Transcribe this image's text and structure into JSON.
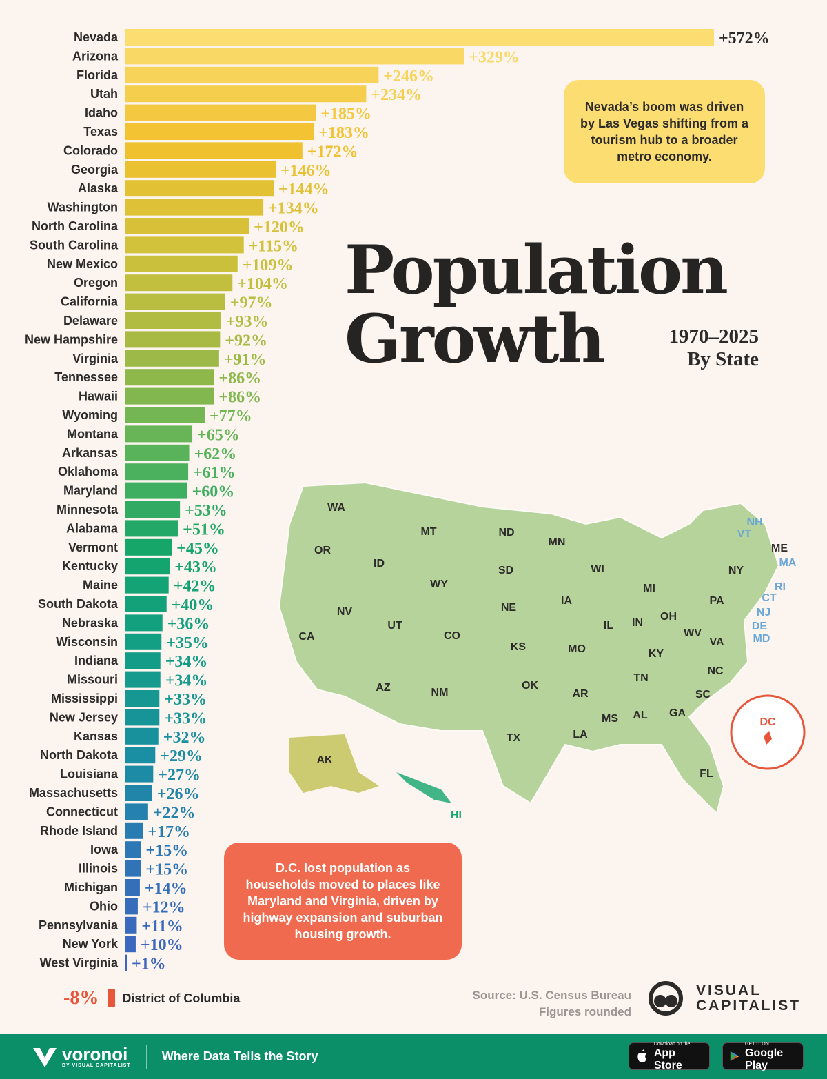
{
  "chart_data": {
    "type": "bar",
    "orientation": "horizontal",
    "title": "Population Growth",
    "subtitle": [
      "1970–2025",
      "By State"
    ],
    "categories": [
      "Nevada",
      "Arizona",
      "Florida",
      "Utah",
      "Idaho",
      "Texas",
      "Colorado",
      "Georgia",
      "Alaska",
      "Washington",
      "North Carolina",
      "South Carolina",
      "New Mexico",
      "Oregon",
      "California",
      "Delaware",
      "New Hampshire",
      "Virginia",
      "Tennessee",
      "Hawaii",
      "Wyoming",
      "Montana",
      "Arkansas",
      "Oklahoma",
      "Maryland",
      "Minnesota",
      "Alabama",
      "Vermont",
      "Kentucky",
      "Maine",
      "South Dakota",
      "Nebraska",
      "Wisconsin",
      "Indiana",
      "Missouri",
      "Mississippi",
      "New Jersey",
      "Kansas",
      "North Dakota",
      "Louisiana",
      "Massachusetts",
      "Connecticut",
      "Rhode Island",
      "Iowa",
      "Illinois",
      "Michigan",
      "Ohio",
      "Pennsylvania",
      "New York",
      "West Virginia"
    ],
    "values": [
      572,
      329,
      246,
      234,
      185,
      183,
      172,
      146,
      144,
      134,
      120,
      115,
      109,
      104,
      97,
      93,
      92,
      91,
      86,
      86,
      77,
      65,
      62,
      61,
      60,
      53,
      51,
      45,
      43,
      42,
      40,
      36,
      35,
      34,
      34,
      33,
      33,
      32,
      29,
      27,
      26,
      22,
      17,
      15,
      15,
      14,
      12,
      11,
      10,
      1
    ],
    "labels": [
      "+572%",
      "+329%",
      "+246%",
      "+234%",
      "+185%",
      "+183%",
      "+172%",
      "+146%",
      "+144%",
      "+134%",
      "+120%",
      "+115%",
      "+109%",
      "+104%",
      "+97%",
      "+93%",
      "+92%",
      "+91%",
      "+86%",
      "+86%",
      "+77%",
      "+65%",
      "+62%",
      "+61%",
      "+60%",
      "+53%",
      "+51%",
      "+45%",
      "+43%",
      "+42%",
      "+40%",
      "+36%",
      "+35%",
      "+34%",
      "+34%",
      "+33%",
      "+33%",
      "+32%",
      "+29%",
      "+27%",
      "+26%",
      "+22%",
      "+17%",
      "+15%",
      "+15%",
      "+14%",
      "+12%",
      "+11%",
      "+10%",
      "+1%"
    ],
    "units": "%",
    "negative_entry": {
      "name": "District of Columbia",
      "value": -8,
      "label": "-8%",
      "color": "#e7563b"
    },
    "color_scale": [
      "#fbdd72",
      "#f2c12e",
      "#d3c13a",
      "#a6ba45",
      "#5cb45a",
      "#13a56b",
      "#139e86",
      "#1a8ea3",
      "#2f75b6",
      "#3f64c0"
    ],
    "legend": "none",
    "grid": false
  },
  "callouts": {
    "nevada": "Nevada’s boom was driven by Las Vegas shifting from a tourism hub to a broader metro economy.",
    "dc": "D.C. lost population as households moved to places like Maryland and Virginia, driven by highway expansion and suburban housing growth."
  },
  "map_labels": {
    "states": [
      "WA",
      "OR",
      "CA",
      "ID",
      "NV",
      "UT",
      "AZ",
      "MT",
      "WY",
      "CO",
      "NM",
      "ND",
      "SD",
      "NE",
      "KS",
      "OK",
      "TX",
      "MN",
      "IA",
      "MO",
      "AR",
      "LA",
      "WI",
      "IL",
      "MS",
      "MI",
      "IN",
      "KY",
      "TN",
      "AL",
      "OH",
      "WV",
      "VA",
      "NC",
      "SC",
      "GA",
      "FL",
      "PA",
      "NY",
      "ME",
      "AK",
      "HI"
    ],
    "northeast": [
      "NH",
      "VT",
      "ME",
      "MA",
      "RI",
      "CT",
      "NJ",
      "DE",
      "MD"
    ],
    "dc": "DC"
  },
  "source": {
    "line1": "Source: U.S. Census Bureau",
    "line2": "Figures rounded"
  },
  "brand": {
    "name_line1": "VISUAL",
    "name_line2": "CAPITALIST"
  },
  "footer": {
    "logo": "voronoi",
    "logo_sub": "BY VISUAL CAPITALIST",
    "tagline": "Where Data Tells the Story",
    "app_store_small": "Download on the",
    "app_store_big": "App Store",
    "google_small": "GET IT ON",
    "google_big": "Google Play"
  }
}
